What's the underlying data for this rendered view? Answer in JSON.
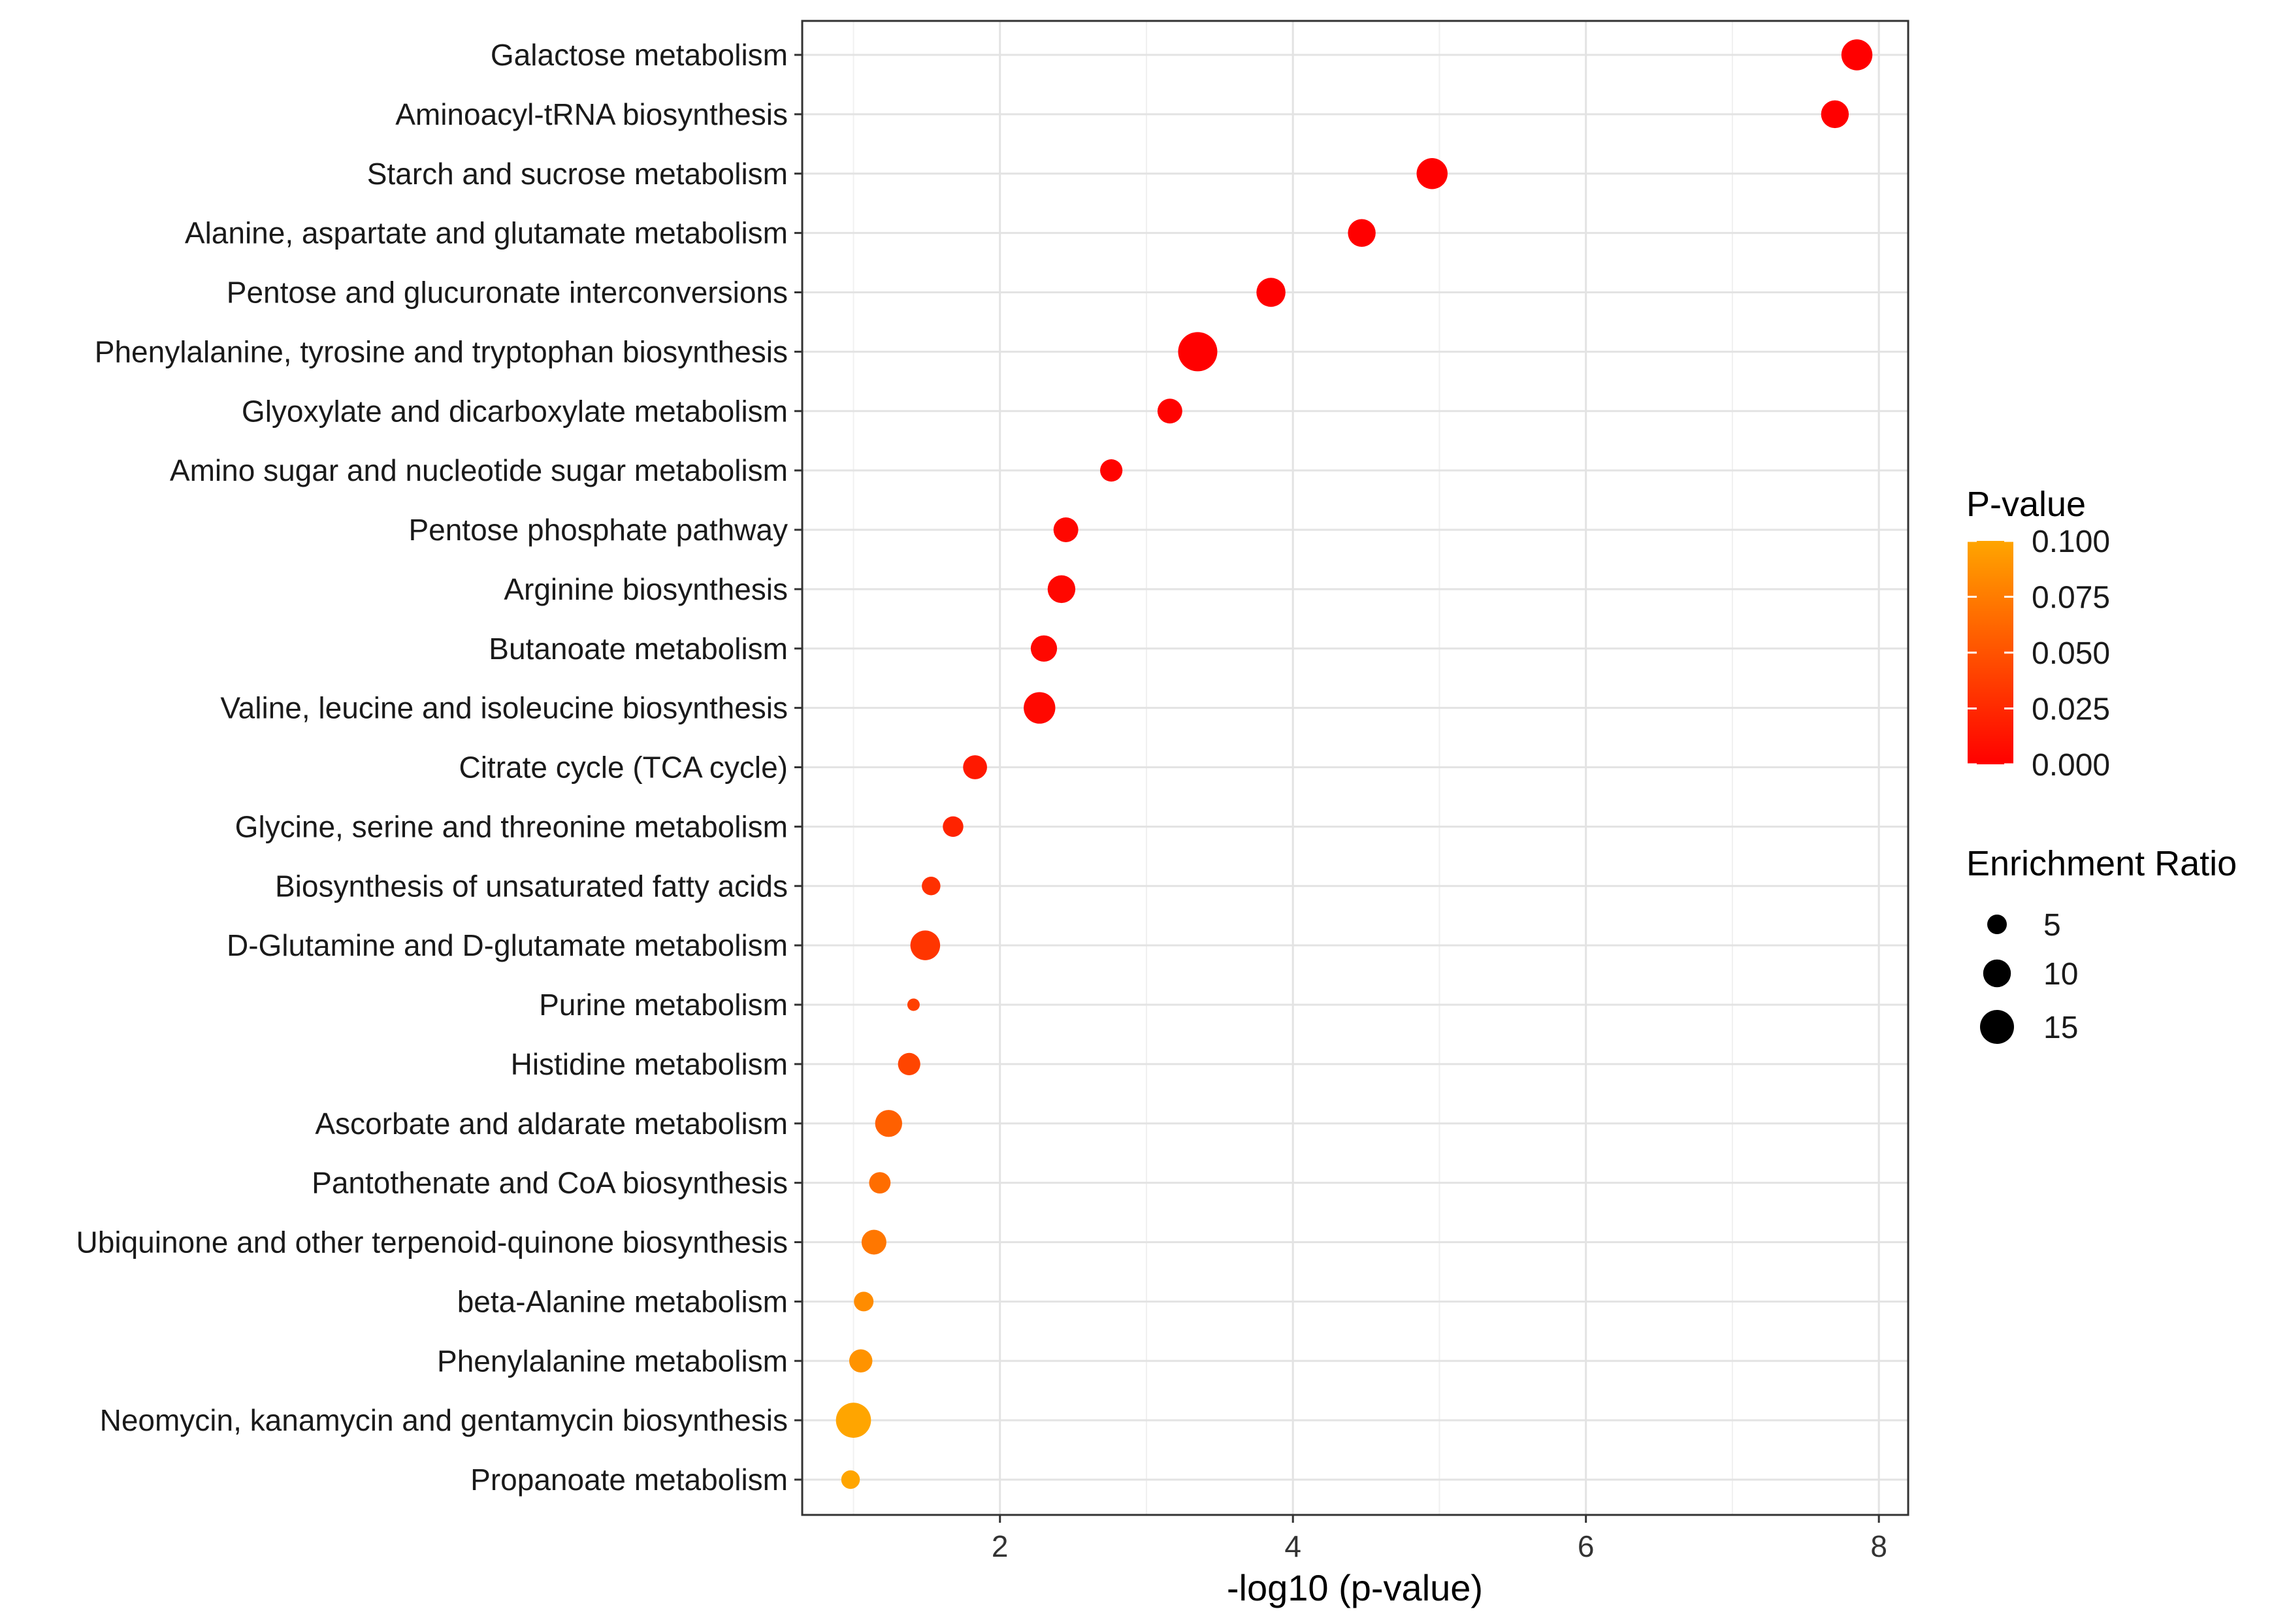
{
  "chart_data": {
    "type": "scatter",
    "title": "",
    "xlabel": "-log10 (p-value)",
    "ylabel": "",
    "xlim": [
      0.65,
      8.2
    ],
    "x_ticks": [
      "2",
      "4",
      "6",
      "8"
    ],
    "x_tick_values": [
      2,
      4,
      6,
      8
    ],
    "grid": true,
    "points": [
      {
        "pathway": "Galactose metabolism",
        "x": 7.85,
        "p_value": 0.0,
        "ratio": 12.5
      },
      {
        "pathway": "Aminoacyl-tRNA biosynthesis",
        "x": 7.7,
        "p_value": 0.0,
        "ratio": 10.0
      },
      {
        "pathway": "Starch and sucrose metabolism",
        "x": 4.95,
        "p_value": 0.0,
        "ratio": 12.5
      },
      {
        "pathway": "Alanine, aspartate and glutamate metabolism",
        "x": 4.47,
        "p_value": 0.0,
        "ratio": 10.0
      },
      {
        "pathway": "Pentose and glucuronate interconversions",
        "x": 3.85,
        "p_value": 0.0,
        "ratio": 11.0
      },
      {
        "pathway": "Phenylalanine, tyrosine and tryptophan biosynthesis",
        "x": 3.35,
        "p_value": 0.0,
        "ratio": 20.0
      },
      {
        "pathway": "Glyoxylate and dicarboxylate metabolism",
        "x": 3.16,
        "p_value": 0.001,
        "ratio": 8.0
      },
      {
        "pathway": "Amino sugar and nucleotide sugar metabolism",
        "x": 2.76,
        "p_value": 0.002,
        "ratio": 6.5
      },
      {
        "pathway": "Pentose phosphate pathway",
        "x": 2.45,
        "p_value": 0.004,
        "ratio": 8.0
      },
      {
        "pathway": "Arginine biosynthesis",
        "x": 2.42,
        "p_value": 0.004,
        "ratio": 10.0
      },
      {
        "pathway": "Butanoate metabolism",
        "x": 2.3,
        "p_value": 0.005,
        "ratio": 9.0
      },
      {
        "pathway": "Valine, leucine and isoleucine biosynthesis",
        "x": 2.27,
        "p_value": 0.005,
        "ratio": 13.0
      },
      {
        "pathway": "Citrate cycle (TCA cycle)",
        "x": 1.83,
        "p_value": 0.015,
        "ratio": 7.5
      },
      {
        "pathway": "Glycine, serine and threonine metabolism",
        "x": 1.68,
        "p_value": 0.021,
        "ratio": 5.5
      },
      {
        "pathway": "Biosynthesis of unsaturated fatty acids",
        "x": 1.53,
        "p_value": 0.029,
        "ratio": 4.5
      },
      {
        "pathway": "D-Glutamine and D-glutamate metabolism",
        "x": 1.49,
        "p_value": 0.032,
        "ratio": 11.5
      },
      {
        "pathway": "Purine metabolism",
        "x": 1.41,
        "p_value": 0.039,
        "ratio": 2.0
      },
      {
        "pathway": "Histidine metabolism",
        "x": 1.38,
        "p_value": 0.042,
        "ratio": 6.5
      },
      {
        "pathway": "Ascorbate and aldarate metabolism",
        "x": 1.24,
        "p_value": 0.058,
        "ratio": 9.5
      },
      {
        "pathway": "Pantothenate and CoA biosynthesis",
        "x": 1.18,
        "p_value": 0.066,
        "ratio": 6.0
      },
      {
        "pathway": "Ubiquinone and other terpenoid-quinone biosynthesis",
        "x": 1.14,
        "p_value": 0.072,
        "ratio": 8.0
      },
      {
        "pathway": "beta-Alanine metabolism",
        "x": 1.07,
        "p_value": 0.085,
        "ratio": 5.0
      },
      {
        "pathway": "Phenylalanine metabolism",
        "x": 1.05,
        "p_value": 0.089,
        "ratio": 7.0
      },
      {
        "pathway": "Neomycin, kanamycin and gentamycin biosynthesis",
        "x": 1.0,
        "p_value": 0.1,
        "ratio": 16.0
      },
      {
        "pathway": "Propanoate metabolism",
        "x": 0.98,
        "p_value": 0.1,
        "ratio": 4.5
      }
    ],
    "legend": {
      "placement": "right",
      "color": {
        "title": "P-value",
        "labels": [
          "0.100",
          "0.075",
          "0.050",
          "0.025",
          "0.000"
        ],
        "values": [
          0.1,
          0.075,
          0.05,
          0.025,
          0.0
        ],
        "low_color": "#ff0000",
        "high_color": "#ffa500"
      },
      "size": {
        "title": "Enrichment Ratio",
        "labels": [
          "5",
          "10",
          "15"
        ],
        "values": [
          5,
          10,
          15
        ]
      }
    }
  }
}
